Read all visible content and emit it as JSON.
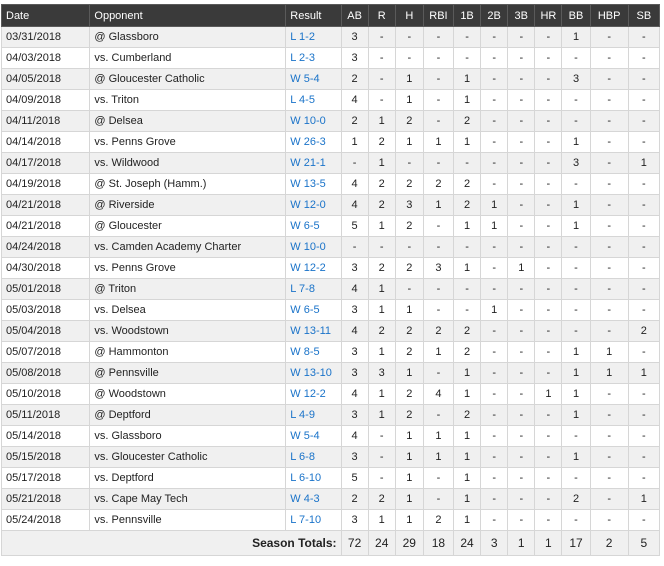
{
  "columns": [
    "Date",
    "Opponent",
    "Result",
    "AB",
    "R",
    "H",
    "RBI",
    "1B",
    "2B",
    "3B",
    "HR",
    "BB",
    "HBP",
    "SB"
  ],
  "games": [
    {
      "date": "03/31/2018",
      "opponent": "@ Glassboro",
      "result": "L 1-2",
      "stats": [
        "3",
        "-",
        "-",
        "-",
        "-",
        "-",
        "-",
        "-",
        "1",
        "-",
        "-"
      ]
    },
    {
      "date": "04/03/2018",
      "opponent": "vs. Cumberland",
      "result": "L 2-3",
      "stats": [
        "3",
        "-",
        "-",
        "-",
        "-",
        "-",
        "-",
        "-",
        "-",
        "-",
        "-"
      ]
    },
    {
      "date": "04/05/2018",
      "opponent": "@ Gloucester Catholic",
      "result": "W 5-4",
      "stats": [
        "2",
        "-",
        "1",
        "-",
        "1",
        "-",
        "-",
        "-",
        "3",
        "-",
        "-"
      ]
    },
    {
      "date": "04/09/2018",
      "opponent": "vs. Triton",
      "result": "L 4-5",
      "stats": [
        "4",
        "-",
        "1",
        "-",
        "1",
        "-",
        "-",
        "-",
        "-",
        "-",
        "-"
      ]
    },
    {
      "date": "04/11/2018",
      "opponent": "@ Delsea",
      "result": "W 10-0",
      "stats": [
        "2",
        "1",
        "2",
        "-",
        "2",
        "-",
        "-",
        "-",
        "-",
        "-",
        "-"
      ]
    },
    {
      "date": "04/14/2018",
      "opponent": "vs. Penns Grove",
      "result": "W 26-3",
      "stats": [
        "1",
        "2",
        "1",
        "1",
        "1",
        "-",
        "-",
        "-",
        "1",
        "-",
        "-"
      ]
    },
    {
      "date": "04/17/2018",
      "opponent": "vs. Wildwood",
      "result": "W 21-1",
      "stats": [
        "-",
        "1",
        "-",
        "-",
        "-",
        "-",
        "-",
        "-",
        "3",
        "-",
        "1"
      ]
    },
    {
      "date": "04/19/2018",
      "opponent": "@ St. Joseph (Hamm.)",
      "result": "W 13-5",
      "stats": [
        "4",
        "2",
        "2",
        "2",
        "2",
        "-",
        "-",
        "-",
        "-",
        "-",
        "-"
      ]
    },
    {
      "date": "04/21/2018",
      "opponent": "@ Riverside",
      "result": "W 12-0",
      "stats": [
        "4",
        "2",
        "3",
        "1",
        "2",
        "1",
        "-",
        "-",
        "1",
        "-",
        "-"
      ]
    },
    {
      "date": "04/21/2018",
      "opponent": "@ Gloucester",
      "result": "W 6-5",
      "stats": [
        "5",
        "1",
        "2",
        "-",
        "1",
        "1",
        "-",
        "-",
        "1",
        "-",
        "-"
      ]
    },
    {
      "date": "04/24/2018",
      "opponent": "vs. Camden Academy Charter",
      "result": "W 10-0",
      "stats": [
        "-",
        "-",
        "-",
        "-",
        "-",
        "-",
        "-",
        "-",
        "-",
        "-",
        "-"
      ]
    },
    {
      "date": "04/30/2018",
      "opponent": "vs. Penns Grove",
      "result": "W 12-2",
      "stats": [
        "3",
        "2",
        "2",
        "3",
        "1",
        "-",
        "1",
        "-",
        "-",
        "-",
        "-"
      ]
    },
    {
      "date": "05/01/2018",
      "opponent": "@ Triton",
      "result": "L 7-8",
      "stats": [
        "4",
        "1",
        "-",
        "-",
        "-",
        "-",
        "-",
        "-",
        "-",
        "-",
        "-"
      ]
    },
    {
      "date": "05/03/2018",
      "opponent": "vs. Delsea",
      "result": "W 6-5",
      "stats": [
        "3",
        "1",
        "1",
        "-",
        "-",
        "1",
        "-",
        "-",
        "-",
        "-",
        "-"
      ]
    },
    {
      "date": "05/04/2018",
      "opponent": "vs. Woodstown",
      "result": "W 13-11",
      "stats": [
        "4",
        "2",
        "2",
        "2",
        "2",
        "-",
        "-",
        "-",
        "-",
        "-",
        "2"
      ]
    },
    {
      "date": "05/07/2018",
      "opponent": "@ Hammonton",
      "result": "W 8-5",
      "stats": [
        "3",
        "1",
        "2",
        "1",
        "2",
        "-",
        "-",
        "-",
        "1",
        "1",
        "-"
      ]
    },
    {
      "date": "05/08/2018",
      "opponent": "@ Pennsville",
      "result": "W 13-10",
      "stats": [
        "3",
        "3",
        "1",
        "-",
        "1",
        "-",
        "-",
        "-",
        "1",
        "1",
        "1"
      ]
    },
    {
      "date": "05/10/2018",
      "opponent": "@ Woodstown",
      "result": "W 12-2",
      "stats": [
        "4",
        "1",
        "2",
        "4",
        "1",
        "-",
        "-",
        "1",
        "1",
        "-",
        "-"
      ]
    },
    {
      "date": "05/11/2018",
      "opponent": "@ Deptford",
      "result": "L 4-9",
      "stats": [
        "3",
        "1",
        "2",
        "-",
        "2",
        "-",
        "-",
        "-",
        "1",
        "-",
        "-"
      ]
    },
    {
      "date": "05/14/2018",
      "opponent": "vs. Glassboro",
      "result": "W 5-4",
      "stats": [
        "4",
        "-",
        "1",
        "1",
        "1",
        "-",
        "-",
        "-",
        "-",
        "-",
        "-"
      ]
    },
    {
      "date": "05/15/2018",
      "opponent": "vs. Gloucester Catholic",
      "result": "L 6-8",
      "stats": [
        "3",
        "-",
        "1",
        "1",
        "1",
        "-",
        "-",
        "-",
        "1",
        "-",
        "-"
      ]
    },
    {
      "date": "05/17/2018",
      "opponent": "vs. Deptford",
      "result": "L 6-10",
      "stats": [
        "5",
        "-",
        "1",
        "-",
        "1",
        "-",
        "-",
        "-",
        "-",
        "-",
        "-"
      ]
    },
    {
      "date": "05/21/2018",
      "opponent": "vs. Cape May Tech",
      "result": "W 4-3",
      "stats": [
        "2",
        "2",
        "1",
        "-",
        "1",
        "-",
        "-",
        "-",
        "2",
        "-",
        "1"
      ]
    },
    {
      "date": "05/24/2018",
      "opponent": "vs. Pennsville",
      "result": "L 7-10",
      "stats": [
        "3",
        "1",
        "1",
        "2",
        "1",
        "-",
        "-",
        "-",
        "-",
        "-",
        "-"
      ]
    }
  ],
  "totals": {
    "label": "Season Totals:",
    "values": [
      "72",
      "24",
      "29",
      "18",
      "24",
      "3",
      "1",
      "1",
      "17",
      "2",
      "5"
    ]
  },
  "colors": {
    "header_bg": "#3a3a3a",
    "link": "#1a73c9",
    "row_alt": "#f0f0f0"
  }
}
